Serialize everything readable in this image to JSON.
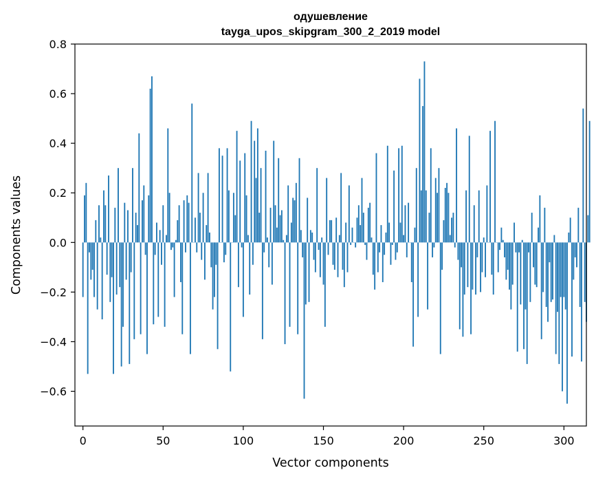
{
  "chart_data": {
    "type": "bar",
    "title": "одушевление",
    "subtitle": "tayga_upos_skipgram_300_2_2019 model",
    "xlabel": "Vector components",
    "ylabel": "Components values",
    "xlim": [
      -5,
      314
    ],
    "ylim": [
      -0.74,
      0.8
    ],
    "xticks": [
      0,
      50,
      100,
      150,
      200,
      250,
      300
    ],
    "xtick_labels": [
      "0",
      "50",
      "100",
      "150",
      "200",
      "250",
      "300"
    ],
    "yticks": [
      -0.6,
      -0.4,
      -0.2,
      0.0,
      0.2,
      0.4,
      0.6,
      0.8
    ],
    "ytick_labels": [
      "−0.6",
      "−0.4",
      "−0.2",
      "0.0",
      "0.2",
      "0.4",
      "0.6",
      "0.8"
    ],
    "bar_color": "#1f77b4",
    "grid": false,
    "legend": "none",
    "values": [
      -0.22,
      0.19,
      0.24,
      -0.53,
      -0.04,
      -0.15,
      -0.11,
      -0.22,
      0.09,
      -0.27,
      0.15,
      0.02,
      -0.31,
      0.21,
      0.15,
      -0.13,
      0.27,
      -0.24,
      -0.14,
      -0.53,
      0.14,
      -0.21,
      0.3,
      -0.18,
      -0.5,
      -0.34,
      0.16,
      -0.15,
      0.13,
      -0.49,
      -0.12,
      0.3,
      -0.39,
      0.12,
      0.07,
      0.44,
      -0.37,
      0.17,
      0.23,
      -0.05,
      -0.45,
      0.19,
      0.62,
      0.67,
      -0.33,
      -0.05,
      0.08,
      -0.3,
      0.05,
      -0.09,
      0.15,
      -0.34,
      0.03,
      0.46,
      0.2,
      -0.03,
      -0.02,
      -0.22,
      0.01,
      0.09,
      0.15,
      -0.16,
      -0.37,
      0.17,
      -0.04,
      0.19,
      0.16,
      -0.45,
      0.56,
      0.0,
      0.1,
      -0.04,
      0.28,
      0.12,
      -0.07,
      0.2,
      -0.15,
      0.07,
      0.28,
      0.04,
      -0.1,
      -0.27,
      -0.22,
      -0.09,
      -0.43,
      0.38,
      0.0,
      0.35,
      -0.08,
      -0.05,
      0.38,
      0.21,
      -0.52,
      0.0,
      0.2,
      0.11,
      0.45,
      -0.18,
      0.33,
      -0.02,
      -0.3,
      0.36,
      0.19,
      0.03,
      -0.21,
      0.49,
      -0.09,
      0.41,
      0.26,
      0.46,
      0.12,
      0.3,
      -0.39,
      -0.04,
      0.37,
      0.02,
      -0.1,
      0.14,
      -0.17,
      0.41,
      0.15,
      0.06,
      0.34,
      0.11,
      0.13,
      0.01,
      -0.41,
      0.03,
      0.23,
      -0.34,
      0.08,
      0.18,
      0.17,
      0.24,
      -0.37,
      0.34,
      0.05,
      -0.06,
      -0.63,
      -0.25,
      0.18,
      -0.24,
      0.05,
      0.04,
      -0.07,
      -0.12,
      0.3,
      -0.03,
      -0.14,
      0.02,
      -0.17,
      -0.34,
      0.26,
      -0.05,
      0.09,
      0.09,
      -0.09,
      -0.11,
      0.1,
      -0.14,
      0.03,
      0.28,
      -0.11,
      -0.18,
      0.08,
      -0.12,
      0.23,
      -0.01,
      0.06,
      0.0,
      -0.02,
      0.1,
      0.15,
      0.07,
      0.26,
      0.12,
      -0.01,
      -0.07,
      0.14,
      0.16,
      0.02,
      -0.13,
      -0.19,
      0.36,
      -0.12,
      -0.04,
      0.07,
      -0.16,
      -0.05,
      0.04,
      0.39,
      0.08,
      -0.09,
      -0.01,
      0.29,
      -0.07,
      -0.04,
      0.38,
      0.08,
      0.39,
      0.03,
      0.15,
      -0.06,
      0.16,
      0.0,
      -0.16,
      -0.42,
      0.06,
      0.3,
      -0.3,
      0.66,
      0.21,
      0.55,
      0.73,
      0.21,
      -0.27,
      0.12,
      0.38,
      -0.06,
      -0.02,
      0.26,
      0.2,
      0.3,
      -0.45,
      -0.11,
      0.09,
      0.22,
      0.24,
      0.2,
      0.03,
      0.1,
      0.12,
      -0.02,
      0.46,
      -0.07,
      -0.35,
      -0.1,
      -0.38,
      -0.21,
      0.21,
      -0.18,
      0.43,
      -0.37,
      -0.19,
      0.15,
      -0.21,
      -0.06,
      0.21,
      -0.2,
      -0.12,
      0.02,
      -0.14,
      0.23,
      0.0,
      0.45,
      -0.13,
      -0.21,
      0.49,
      0.0,
      -0.12,
      -0.03,
      0.06,
      0.01,
      -0.06,
      -0.15,
      -0.11,
      -0.19,
      -0.27,
      -0.17,
      0.08,
      -0.04,
      -0.44,
      -0.04,
      -0.25,
      0.01,
      -0.43,
      -0.27,
      -0.49,
      -0.04,
      -0.24,
      0.12,
      -0.1,
      -0.17,
      -0.18,
      0.06,
      0.19,
      -0.39,
      -0.2,
      0.14,
      -0.26,
      -0.32,
      -0.08,
      -0.24,
      -0.23,
      0.03,
      -0.45,
      -0.28,
      -0.49,
      -0.22,
      -0.6,
      -0.22,
      -0.27,
      -0.65,
      0.04,
      0.1,
      -0.46,
      -0.15,
      -0.06,
      -0.1,
      0.14,
      -0.26,
      -0.48,
      0.54,
      -0.24,
      -0.32,
      0.11,
      0.49
    ]
  }
}
